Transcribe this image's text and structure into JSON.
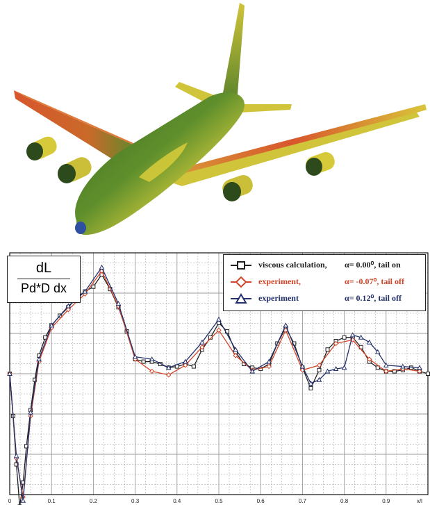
{
  "colors": {
    "background": "#ffffff",
    "grid": "#9a9a9a",
    "axis": "#111111",
    "plane_green": "#4f7d2a",
    "plane_dark": "#2e5218",
    "plane_yellow": "#d6d23a",
    "plane_orange": "#d8562c"
  },
  "ylabel": {
    "numerator": "dL",
    "denominator": "Pd*D dx"
  },
  "legend": [
    {
      "name": "viscous calculation,",
      "condition": "α= 0.00⁰, tail on",
      "color": "#1f1f1f",
      "marker": "square"
    },
    {
      "name": "experiment,",
      "condition": "α= -0.07⁰, tail off",
      "color": "#d0462a",
      "marker": "diamond"
    },
    {
      "name": "experiment",
      "condition": "α= 0.12⁰, tail off",
      "color": "#23306a",
      "marker": "triangle"
    }
  ],
  "chart_data": {
    "type": "line",
    "title": "",
    "xlabel": "x/l",
    "ylabel": "dL / (Pd*D dx)",
    "xlim": [
      0,
      1.0
    ],
    "ylim": [
      -1,
      1
    ],
    "grid": true,
    "legend_position": "top-right",
    "x_ticks": [
      "0",
      "0.1",
      "0.2",
      "0.3",
      "0.4",
      "0.5",
      "0.6",
      "0.7",
      "0.8",
      "0.9",
      "x/l"
    ],
    "x_tick_values": [
      0,
      0.1,
      0.2,
      0.3,
      0.4,
      0.5,
      0.6,
      0.7,
      0.8,
      0.9,
      0.98
    ],
    "series": [
      {
        "name": "viscous calculation, α= 0.00⁰, tail on",
        "color": "#1f1f1f",
        "marker": "square",
        "x": [
          0.0,
          0.008,
          0.016,
          0.024,
          0.032,
          0.04,
          0.05,
          0.06,
          0.07,
          0.085,
          0.1,
          0.12,
          0.14,
          0.16,
          0.18,
          0.2,
          0.22,
          0.24,
          0.26,
          0.28,
          0.3,
          0.32,
          0.34,
          0.36,
          0.38,
          0.4,
          0.42,
          0.44,
          0.46,
          0.48,
          0.5,
          0.52,
          0.54,
          0.56,
          0.58,
          0.6,
          0.62,
          0.64,
          0.66,
          0.68,
          0.7,
          0.72,
          0.74,
          0.76,
          0.78,
          0.8,
          0.82,
          0.84,
          0.86,
          0.88,
          0.9,
          0.92,
          0.94,
          0.96,
          0.98,
          1.0
        ],
        "y": [
          0.0,
          -0.35,
          -0.75,
          -1.1,
          -0.9,
          -0.6,
          -0.3,
          -0.05,
          0.15,
          0.3,
          0.4,
          0.48,
          0.55,
          0.63,
          0.68,
          0.72,
          0.82,
          0.7,
          0.55,
          0.35,
          0.12,
          0.1,
          0.1,
          0.08,
          0.05,
          0.06,
          0.08,
          0.06,
          0.2,
          0.3,
          0.42,
          0.35,
          0.18,
          0.08,
          0.05,
          0.04,
          0.08,
          0.25,
          0.38,
          0.25,
          0.05,
          -0.12,
          0.03,
          0.2,
          0.27,
          0.3,
          0.3,
          0.22,
          0.1,
          0.05,
          0.02,
          0.02,
          0.03,
          0.05,
          0.02,
          0.0
        ]
      },
      {
        "name": "experiment, α= -0.07⁰, tail off",
        "color": "#d0462a",
        "marker": "diamond",
        "x": [
          0.0,
          0.016,
          0.032,
          0.05,
          0.07,
          0.1,
          0.14,
          0.18,
          0.22,
          0.26,
          0.3,
          0.34,
          0.38,
          0.42,
          0.46,
          0.5,
          0.54,
          0.58,
          0.62,
          0.66,
          0.7,
          0.74,
          0.78,
          0.82,
          0.86,
          0.9,
          0.94,
          0.98
        ],
        "y": [
          0.0,
          -0.7,
          -1.02,
          -0.35,
          0.1,
          0.38,
          0.53,
          0.66,
          0.85,
          0.56,
          0.12,
          0.02,
          -0.01,
          0.07,
          0.22,
          0.36,
          0.15,
          0.03,
          0.06,
          0.36,
          0.03,
          0.07,
          0.25,
          0.28,
          0.12,
          0.02,
          0.04,
          0.02
        ]
      },
      {
        "name": "experiment α= 0.12⁰, tail off",
        "color": "#23306a",
        "marker": "triangle",
        "x": [
          0.0,
          0.016,
          0.032,
          0.05,
          0.07,
          0.1,
          0.14,
          0.18,
          0.22,
          0.26,
          0.3,
          0.34,
          0.38,
          0.42,
          0.46,
          0.5,
          0.54,
          0.58,
          0.62,
          0.66,
          0.7,
          0.72,
          0.74,
          0.76,
          0.78,
          0.8,
          0.82,
          0.84,
          0.86,
          0.88,
          0.9,
          0.94,
          0.98
        ],
        "y": [
          0.0,
          -0.68,
          -1.05,
          -0.32,
          0.12,
          0.4,
          0.56,
          0.68,
          0.88,
          0.58,
          0.14,
          0.12,
          0.05,
          0.1,
          0.26,
          0.45,
          0.2,
          0.02,
          0.1,
          0.4,
          0.06,
          -0.08,
          -0.05,
          0.02,
          0.04,
          0.05,
          0.32,
          0.3,
          0.26,
          0.18,
          0.07,
          0.06,
          0.05
        ]
      }
    ]
  }
}
